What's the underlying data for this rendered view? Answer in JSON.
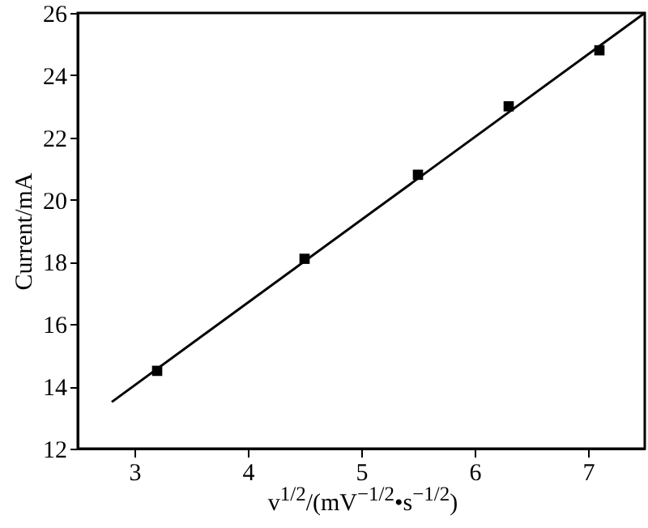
{
  "chart_data": {
    "type": "scatter",
    "xlabel": "v$^{1/2}$/(mV$^{−1/2}$•s$^{−1/2}$)",
    "ylabel": "Current/mA",
    "xlim": [
      2.5,
      7.5
    ],
    "xticks": [
      3,
      4,
      5,
      6,
      7
    ],
    "ylim": [
      12,
      26
    ],
    "yticks": [
      12,
      14,
      16,
      18,
      20,
      22,
      24,
      26
    ],
    "grid": false,
    "series": [
      {
        "color": "#000000",
        "marker": "square",
        "x": [
          3.2,
          4.5,
          5.5,
          6.3,
          7.1
        ],
        "values": [
          14.5,
          18.1,
          20.8,
          23.0,
          24.8
        ]
      },
      {
        "type": "line",
        "color": "#000000",
        "line_style": "solid",
        "x": [
          2.8,
          7.5
        ],
        "values": [
          13.5,
          26
        ]
      }
    ]
  }
}
